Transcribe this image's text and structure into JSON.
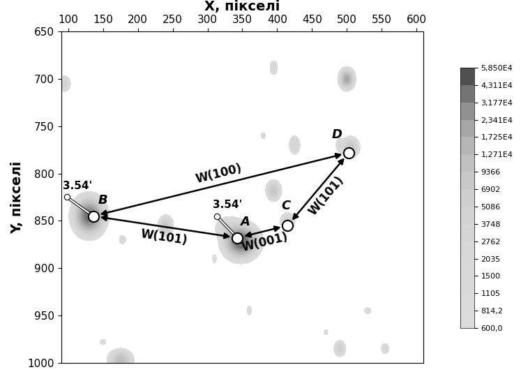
{
  "chart_data": {
    "type": "contour",
    "xlabel": "X, пікселі",
    "ylabel": "Y, пікселі",
    "xlim": [
      90,
      610
    ],
    "ylim": [
      1000,
      650
    ],
    "xticks": [
      100,
      150,
      200,
      250,
      300,
      350,
      400,
      450,
      500,
      550,
      600
    ],
    "yticks": [
      650,
      700,
      750,
      800,
      850,
      900,
      950,
      1000
    ],
    "colorbar": {
      "levels": [
        {
          "value": 600,
          "label": "600,0"
        },
        {
          "value": 814.2,
          "label": "814,2"
        },
        1105,
        1500,
        2035,
        2762,
        3748,
        5086,
        6902,
        9366,
        {
          "value": 12710,
          "label": "1,271E4"
        },
        {
          "value": 17250,
          "label": "1,725E4"
        },
        {
          "value": 23410,
          "label": "2,341E4"
        },
        {
          "value": 31770,
          "label": "3,177E4"
        },
        {
          "value": 43110,
          "label": "4,311E4"
        },
        {
          "value": 58500,
          "label": "5,850E4"
        }
      ]
    },
    "spots": [
      {
        "x": 130,
        "y": 845,
        "peak": 40000,
        "sx": 10,
        "sy": 9
      },
      {
        "x": 348,
        "y": 872,
        "peak": 45000,
        "sx": 11,
        "sy": 8
      },
      {
        "x": 330,
        "y": 858,
        "peak": 5000,
        "sx": 9,
        "sy": 6
      },
      {
        "x": 415,
        "y": 850,
        "peak": 6000,
        "sx": 5,
        "sy": 4
      },
      {
        "x": 505,
        "y": 772,
        "peak": 9000,
        "sx": 6,
        "sy": 5
      },
      {
        "x": 500,
        "y": 700,
        "peak": 20000,
        "sx": 5,
        "sy": 5
      },
      {
        "x": 425,
        "y": 770,
        "peak": 4000,
        "sx": 4,
        "sy": 5
      },
      {
        "x": 395,
        "y": 818,
        "peak": 9000,
        "sx": 5,
        "sy": 5
      },
      {
        "x": 490,
        "y": 770,
        "peak": 3000,
        "sx": 3,
        "sy": 4
      },
      {
        "x": 240,
        "y": 855,
        "peak": 8000,
        "sx": 5,
        "sy": 5
      },
      {
        "x": 395,
        "y": 688,
        "peak": 3000,
        "sx": 3,
        "sy": 4
      },
      {
        "x": 380,
        "y": 760,
        "peak": 2000,
        "sx": 2,
        "sy": 2
      },
      {
        "x": 95,
        "y": 705,
        "peak": 5000,
        "sx": 4,
        "sy": 4
      },
      {
        "x": 175,
        "y": 997,
        "peak": 12000,
        "sx": 8,
        "sy": 5
      },
      {
        "x": 150,
        "y": 978,
        "peak": 1500,
        "sx": 3,
        "sy": 2
      },
      {
        "x": 490,
        "y": 985,
        "peak": 6000,
        "sx": 4,
        "sy": 4
      },
      {
        "x": 555,
        "y": 985,
        "peak": 3000,
        "sx": 3,
        "sy": 3
      },
      {
        "x": 530,
        "y": 945,
        "peak": 2000,
        "sx": 3,
        "sy": 2
      },
      {
        "x": 360,
        "y": 945,
        "peak": 2000,
        "sx": 2,
        "sy": 3
      },
      {
        "x": 178,
        "y": 870,
        "peak": 2000,
        "sx": 3,
        "sy": 3
      },
      {
        "x": 310,
        "y": 890,
        "peak": 1500,
        "sx": 2,
        "sy": 3
      },
      {
        "x": 470,
        "y": 968,
        "peak": 1500,
        "sx": 2,
        "sy": 2
      }
    ],
    "points": [
      {
        "label": "A",
        "x": 343,
        "y": 868
      },
      {
        "label": "B",
        "x": 136,
        "y": 845
      },
      {
        "label": "C",
        "x": 415,
        "y": 855
      },
      {
        "label": "D",
        "x": 503,
        "y": 778
      }
    ],
    "links": [
      {
        "from": "B",
        "to": "D",
        "label": "W(100)"
      },
      {
        "from": "B",
        "to": "A",
        "label": "W(101)"
      },
      {
        "from": "A",
        "to": "C",
        "label": "W(001)"
      },
      {
        "from": "C",
        "to": "D",
        "label": "W(101)"
      }
    ],
    "markers": [
      {
        "label": "3.54'",
        "x": 98,
        "y": 825,
        "to": "B"
      },
      {
        "label": "3.54'",
        "x": 313,
        "y": 845,
        "to": "A"
      }
    ]
  }
}
